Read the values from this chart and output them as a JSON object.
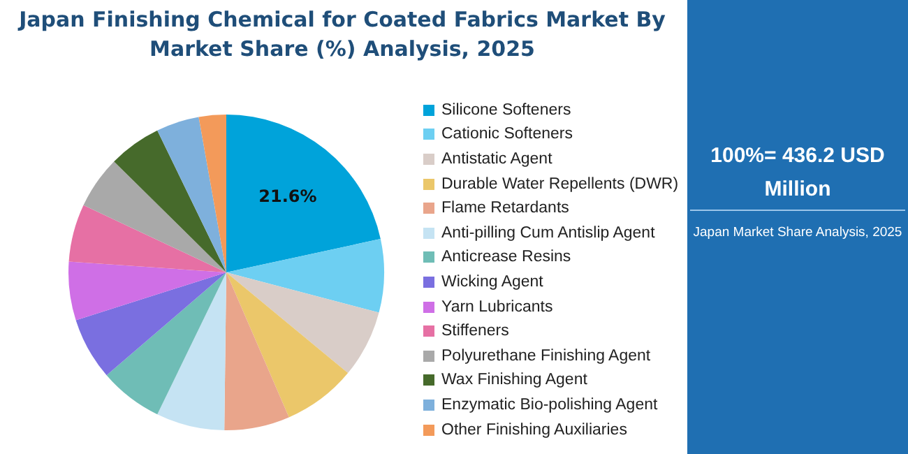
{
  "chart_data": {
    "type": "pie",
    "title": "Japan Finishing Chemical for Coated Fabrics Market By Market Share (%) Analysis, 2025",
    "categories": [
      "Silicone Softeners",
      "Cationic Softeners",
      "Antistatic Agent",
      "Durable Water Repellents (DWR)",
      "Flame Retardants",
      "Anti-pilling Cum Antislip Agent",
      "Anticrease Resins",
      "Wicking Agent",
      "Yarn Lubricants",
      "Stiffeners",
      "Polyurethane Finishing Agent",
      "Wax Finishing Agent",
      "Enzymatic Bio-polishing Agent",
      "Other Finishing Auxiliaries"
    ],
    "values": [
      21.6,
      7.5,
      6.9,
      7.5,
      6.7,
      7.0,
      6.5,
      6.4,
      6.0,
      5.9,
      5.4,
      5.4,
      4.4,
      2.8
    ],
    "value_labels": [
      "21.6%",
      null,
      null,
      null,
      null,
      null,
      null,
      null,
      null,
      null,
      null,
      null,
      null,
      null
    ],
    "colors": [
      "#00a3da",
      "#6dcff2",
      "#d9cdc8",
      "#ebc76a",
      "#e9a58b",
      "#c5e3f3",
      "#6fbdb6",
      "#7a6fe0",
      "#cf6fe6",
      "#e670a4",
      "#a9a9a9",
      "#466a2b",
      "#7eb0dc",
      "#f39a5a"
    ],
    "legend": "right",
    "annotations": [
      "100%= 436.2 USD Million",
      "Japan Market Share Analysis, 2025"
    ]
  }
}
